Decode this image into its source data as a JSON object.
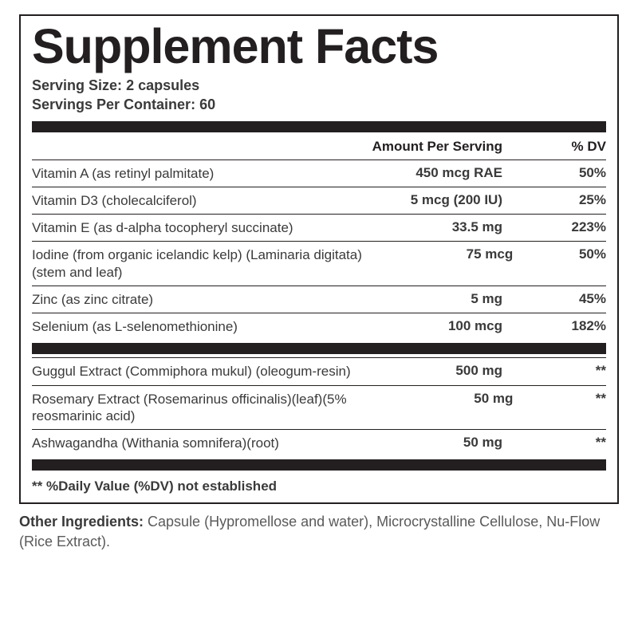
{
  "title": "Supplement Facts",
  "serving_size_label": "Serving Size:",
  "serving_size_value": "2 capsules",
  "servings_per_label": "Servings Per Container:",
  "servings_per_value": "60",
  "header_amount": "Amount Per Serving",
  "header_dv": "% DV",
  "section1": [
    {
      "name": "Vitamin A (as retinyl palmitate)",
      "amount": "450 mcg RAE",
      "dv": "50%"
    },
    {
      "name": "Vitamin D3 (cholecalciferol)",
      "amount": "5 mcg (200 IU)",
      "dv": "25%"
    },
    {
      "name": "Vitamin E (as d-alpha tocopheryl succinate)",
      "amount": "33.5 mg",
      "dv": "223%"
    },
    {
      "name": "Iodine (from organic icelandic kelp) (Laminaria digitata)(stem and leaf)",
      "amount": "75 mcg",
      "dv": "50%"
    },
    {
      "name": "Zinc (as zinc citrate)",
      "amount": "5 mg",
      "dv": "45%"
    },
    {
      "name": "Selenium (as L-selenomethionine)",
      "amount": "100 mcg",
      "dv": "182%"
    }
  ],
  "section2": [
    {
      "name": "Guggul Extract (Commiphora mukul) (oleogum-resin)",
      "amount": "500 mg",
      "dv": "**"
    },
    {
      "name": "Rosemary Extract (Rosemarinus officinalis)(leaf)(5% reosmarinic acid)",
      "amount": "50 mg",
      "dv": "**"
    },
    {
      "name": "Ashwagandha (Withania somnifera)(root)",
      "amount": "50 mg",
      "dv": "**"
    }
  ],
  "footnote": "** %Daily Value (%DV) not established",
  "other_label": "Other Ingredients:",
  "other_value": "Capsule (Hypromellose and water), Microcrystalline Cellulose, Nu-Flow (Rice Extract)."
}
